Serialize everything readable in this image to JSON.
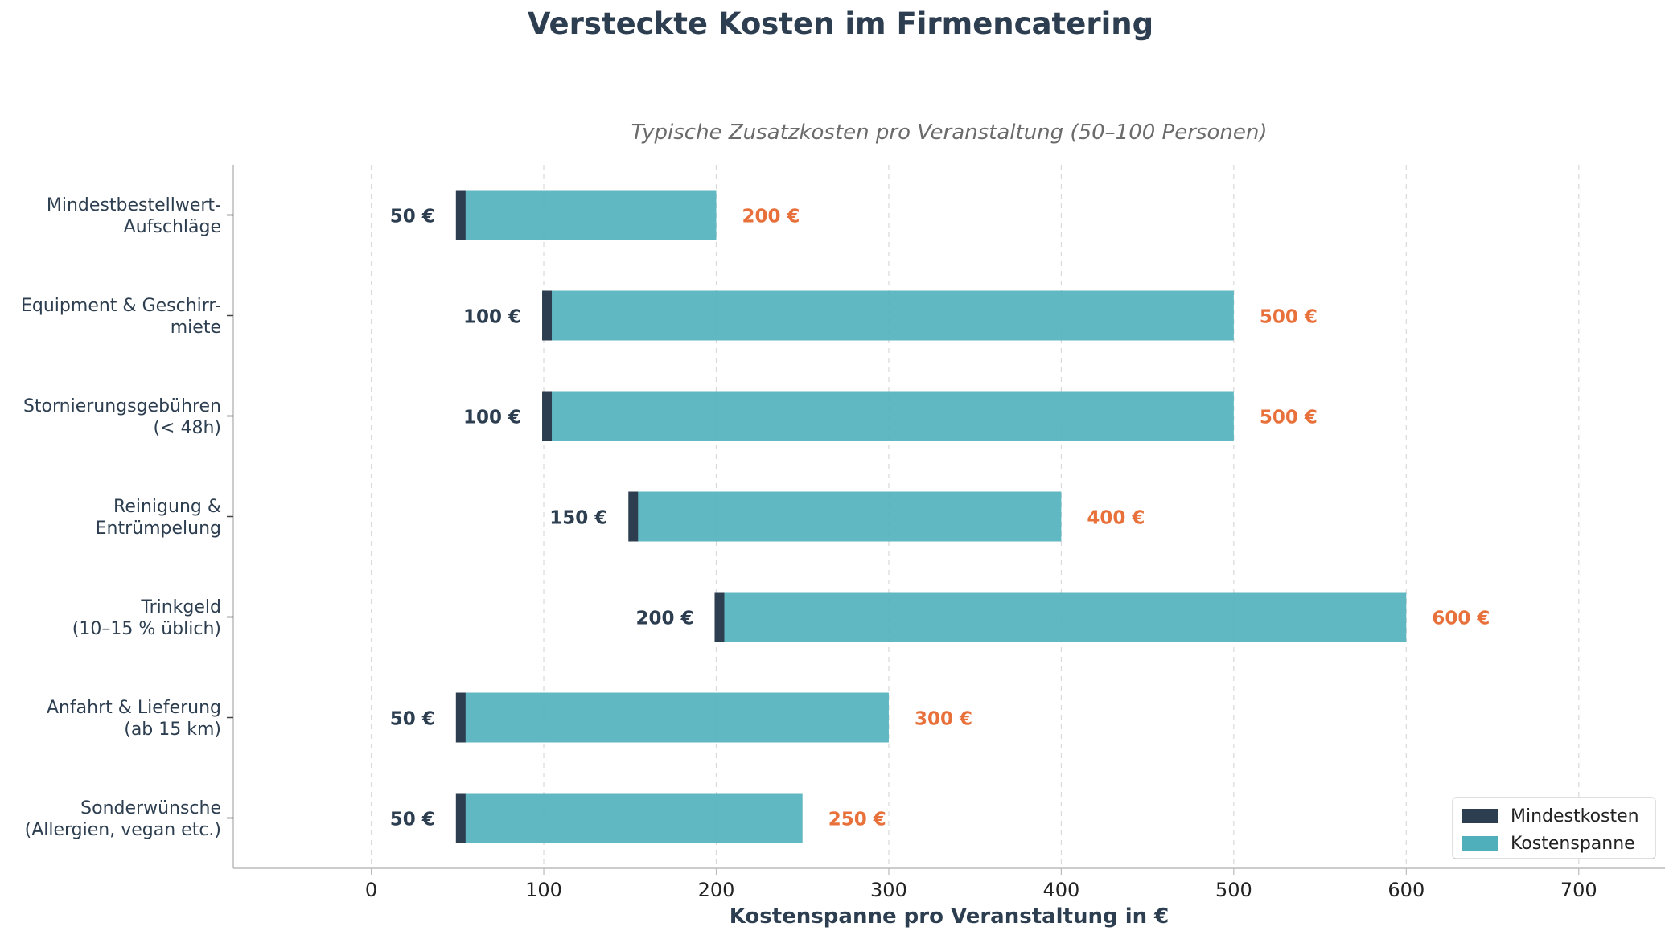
{
  "chart_data": {
    "type": "bar",
    "orientation": "horizontal",
    "title": "Versteckte Kosten im Firmencatering",
    "subtitle": "Typische Zusatzkosten pro Veranstaltung (50–100 Personen)",
    "xlabel": "Kostenspanne pro Veranstaltung in €",
    "ylabel": "",
    "xlim": [
      -80,
      750
    ],
    "xticks": [
      0,
      100,
      200,
      300,
      400,
      500,
      600,
      700
    ],
    "grid": "x-dashed",
    "legend_position": "bottom-right",
    "colors": {
      "min": "#2c3e50",
      "range": "#4fb0bc",
      "max_label": "#e8703a"
    },
    "series": [
      {
        "name": "Mindestkosten",
        "color": "#2c3e50"
      },
      {
        "name": "Kostenspanne",
        "color": "#4fb0bc"
      }
    ],
    "categories": [
      [
        "Mindestbestellwert-",
        "Aufschläge"
      ],
      [
        "Equipment & Geschirr-",
        "miete"
      ],
      [
        "Stornierungsgebühren",
        "(< 48h)"
      ],
      [
        "Reinigung &",
        "Entrümpelung"
      ],
      [
        "Trinkgeld",
        "(10–15 % üblich)"
      ],
      [
        "Anfahrt & Lieferung",
        "(ab 15 km)"
      ],
      [
        "Sonderwünsche",
        "(Allergien, vegan etc.)"
      ]
    ],
    "min_values": [
      50,
      100,
      100,
      150,
      200,
      50,
      50
    ],
    "max_values": [
      200,
      500,
      500,
      400,
      600,
      300,
      250
    ],
    "min_labels": [
      "50 €",
      "100 €",
      "100 €",
      "150 €",
      "200 €",
      "50 €",
      "50 €"
    ],
    "max_labels": [
      "200 €",
      "500 €",
      "500 €",
      "400 €",
      "600 €",
      "300 €",
      "250 €"
    ]
  }
}
